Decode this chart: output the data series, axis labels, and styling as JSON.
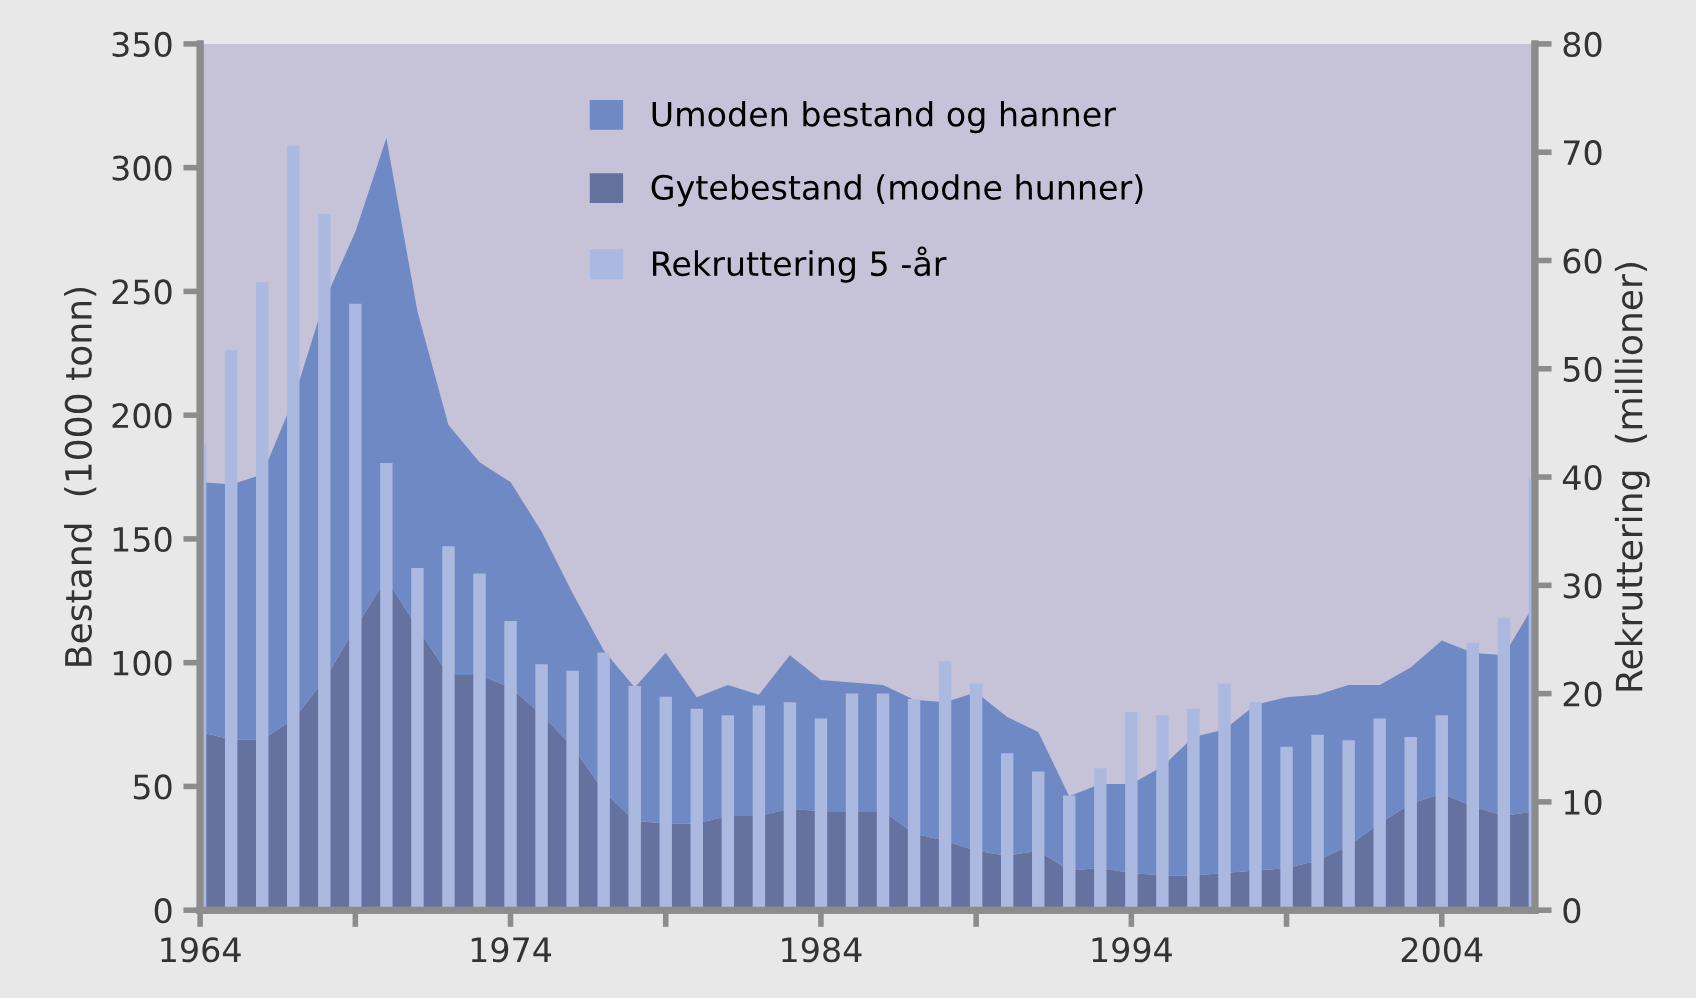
{
  "chart_data": {
    "type": "area",
    "stacked": true,
    "ylabel": "Bestand  (1000 tonn)",
    "y2label": "Rekruttering  (millioner)",
    "x": [
      1964,
      1965,
      1966,
      1967,
      1968,
      1969,
      1970,
      1971,
      1972,
      1973,
      1974,
      1975,
      1976,
      1977,
      1978,
      1979,
      1980,
      1981,
      1982,
      1983,
      1984,
      1985,
      1986,
      1987,
      1988,
      1989,
      1990,
      1991,
      1992,
      1993,
      1994,
      1995,
      1996,
      1997,
      1998,
      1999,
      2000,
      2001,
      2002,
      2003,
      2004,
      2005,
      2006,
      2007
    ],
    "series": [
      {
        "name": "Gytebestand (modne hunner)",
        "color": "#65719f",
        "values": [
          72,
          69,
          69,
          77,
          93,
          114,
          134,
          114,
          95,
          95,
          90,
          79,
          66,
          48,
          36,
          35,
          35,
          38,
          38,
          41,
          40,
          40,
          40,
          31,
          28,
          24,
          22,
          24,
          16,
          17,
          15,
          14,
          14,
          15,
          16,
          17,
          20,
          26,
          35,
          43,
          47,
          42,
          38,
          40
        ]
      },
      {
        "name": "Umoden bestand og hanner",
        "color": "#6f89c4",
        "values": [
          101,
          103,
          107,
          129,
          153,
          160,
          178,
          128,
          101,
          86,
          83,
          74,
          62,
          57,
          54,
          69,
          51,
          53,
          49,
          62,
          53,
          52,
          51,
          54,
          56,
          64,
          56,
          48,
          30,
          34,
          36,
          44,
          56,
          58,
          67,
          69,
          67,
          65,
          56,
          55,
          62,
          62,
          65,
          84
        ]
      },
      {
        "name": "Rekruttering 5 -år",
        "type": "bar",
        "axis": "y2",
        "color": "#abb9e0",
        "values": [
          43.0,
          51.7,
          58.0,
          70.6,
          64.3,
          56.0,
          41.3,
          31.6,
          33.6,
          31.1,
          26.7,
          22.7,
          22.1,
          23.8,
          20.7,
          19.7,
          18.6,
          18.0,
          18.9,
          19.2,
          17.7,
          20.0,
          20.0,
          19.5,
          23.0,
          20.9,
          14.5,
          12.8,
          10.6,
          13.1,
          18.3,
          18.0,
          18.6,
          20.9,
          19.2,
          15.1,
          16.2,
          15.7,
          17.7,
          16.0,
          18.0,
          24.7,
          27.0,
          39.8
        ]
      }
    ],
    "xlim": [
      1964,
      2007
    ],
    "xticks": [
      1964,
      {
        "value": 1969,
        "label": null
      },
      1974,
      {
        "value": 1979,
        "label": null
      },
      1984,
      {
        "value": 1989,
        "label": null
      },
      1994,
      {
        "value": 1999,
        "label": null
      },
      2004
    ],
    "ylim": [
      0,
      350
    ],
    "yticks": [
      0,
      50,
      100,
      150,
      200,
      250,
      300,
      350
    ],
    "y2lim": [
      0,
      80
    ],
    "y2ticks": [
      0,
      10,
      20,
      30,
      40,
      50,
      60,
      70,
      80
    ],
    "legend": "top",
    "grid": false
  }
}
